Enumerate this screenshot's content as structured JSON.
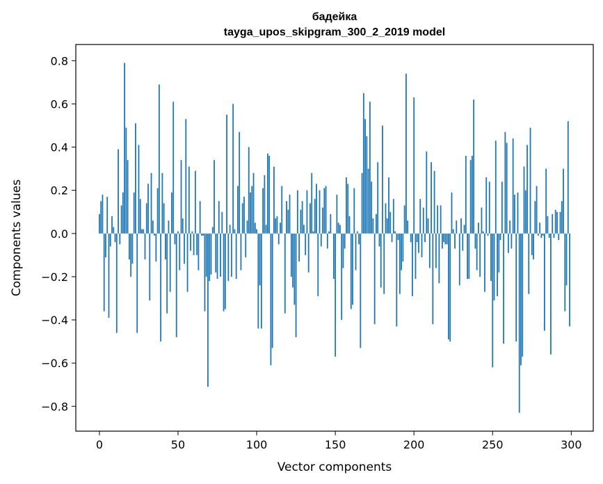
{
  "chart_data": {
    "type": "bar",
    "title": "бадейка",
    "subtitle": "tayga_upos_skipgram_300_2_2019 model",
    "xlabel": "Vector components",
    "ylabel": "Components values",
    "xlim": [
      -15,
      314
    ],
    "ylim": [
      -0.915,
      0.875
    ],
    "x_ticks": [
      0,
      50,
      100,
      150,
      200,
      250,
      300
    ],
    "y_ticks": [
      0.8,
      0.6,
      0.4,
      0.2,
      0.0,
      -0.2,
      -0.4,
      -0.6,
      -0.8
    ],
    "y_tick_labels": [
      "0.8",
      "0.6",
      "0.4",
      "0.2",
      "0.0",
      "−0.2",
      "−0.4",
      "−0.6",
      "−0.8"
    ],
    "bar_color": "#1f77b4",
    "grid": false,
    "values": [
      0.09,
      0.15,
      0.18,
      -0.36,
      -0.11,
      0.17,
      -0.39,
      -0.06,
      0.08,
      0.03,
      -0.04,
      -0.46,
      0.39,
      -0.05,
      0.13,
      0.19,
      0.79,
      0.49,
      0.34,
      -0.12,
      -0.2,
      -0.14,
      0.19,
      0.51,
      -0.46,
      0.41,
      0.16,
      0.02,
      0.02,
      -0.12,
      0.14,
      0.23,
      -0.31,
      0.28,
      0.06,
      -0.01,
      -0.13,
      0.21,
      0.69,
      -0.5,
      0.28,
      0.14,
      -0.12,
      -0.37,
      0.06,
      -0.27,
      0.19,
      0.61,
      -0.05,
      -0.48,
      0.01,
      -0.17,
      0.34,
      0.07,
      -0.14,
      0.53,
      -0.27,
      0.31,
      -0.08,
      0.01,
      -0.1,
      0.29,
      -0.1,
      -0.17,
      0.15,
      -0.01,
      -0.01,
      -0.36,
      -0.2,
      -0.71,
      -0.22,
      -0.19,
      0.03,
      0.34,
      -0.18,
      -0.21,
      0.15,
      -0.2,
      0.1,
      -0.36,
      -0.35,
      0.55,
      -0.22,
      0.04,
      -0.2,
      0.6,
      0.02,
      -0.21,
      0.22,
      0.47,
      -0.17,
      0.14,
      0.17,
      -0.11,
      0.06,
      0.4,
      0.19,
      0.22,
      0.28,
      0.05,
      0.02,
      -0.44,
      -0.24,
      -0.44,
      0.21,
      0.27,
      0.04,
      0.37,
      0.36,
      -0.61,
      -0.53,
      0.31,
      0.07,
      0.08,
      -0.05,
      0.05,
      0.22,
      0.0,
      -0.37,
      0.15,
      0.11,
      0.18,
      -0.2,
      -0.25,
      -0.33,
      -0.48,
      0.2,
      -0.13,
      0.11,
      0.15,
      0.04,
      -0.1,
      0.2,
      -0.18,
      0.14,
      0.28,
      0.01,
      0.16,
      0.23,
      -0.29,
      0.2,
      -0.06,
      0.12,
      0.21,
      0.22,
      -0.07,
      0.01,
      0.09,
      0.0,
      -0.21,
      -0.57,
      0.18,
      0.05,
      0.04,
      -0.4,
      -0.16,
      -0.07,
      0.26,
      0.23,
      0.08,
      -0.35,
      -0.33,
      0.21,
      -0.17,
      0.01,
      -0.05,
      -0.53,
      0.28,
      0.65,
      0.53,
      0.45,
      0.3,
      0.61,
      0.24,
      0.07,
      -0.42,
      0.09,
      0.33,
      -0.06,
      -0.25,
      0.5,
      -0.28,
      0.14,
      0.07,
      0.26,
      0.1,
      -0.04,
      0.16,
      0.01,
      -0.43,
      -0.03,
      -0.28,
      -0.17,
      -0.13,
      0.13,
      0.74,
      0.06,
      0.0,
      -0.04,
      -0.29,
      0.63,
      -0.21,
      -0.04,
      -0.09,
      0.16,
      -0.11,
      0.12,
      -0.04,
      0.38,
      0.07,
      -0.16,
      0.33,
      -0.42,
      0.29,
      -0.16,
      0.13,
      -0.23,
      0.13,
      -0.07,
      -0.04,
      -0.05,
      -0.05,
      -0.49,
      -0.5,
      0.19,
      0.02,
      -0.07,
      0.06,
      0.0,
      -0.24,
      0.07,
      -0.08,
      0.04,
      0.36,
      -0.21,
      -0.21,
      0.34,
      0.36,
      0.62,
      -0.07,
      -0.17,
      0.05,
      -0.2,
      0.12,
      0.01,
      -0.27,
      0.26,
      -0.01,
      0.24,
      -0.22,
      -0.62,
      -0.31,
      0.43,
      -0.29,
      -0.18,
      -0.03,
      0.24,
      -0.51,
      0.47,
      0.42,
      -0.09,
      0.06,
      -0.07,
      0.44,
      0.18,
      -0.5,
      0.19,
      -0.83,
      -0.61,
      -0.57,
      0.31,
      0.2,
      0.41,
      -0.28,
      0.49,
      -0.1,
      -0.12,
      0.15,
      0.22,
      -0.01,
      0.05,
      -0.02,
      -0.01,
      -0.45,
      0.3,
      0.08,
      -0.02,
      -0.56,
      0.09,
      -0.02,
      0.11,
      0.1,
      -0.03,
      0.1,
      0.15,
      0.3,
      -0.36,
      -0.24,
      0.52,
      -0.43
    ]
  }
}
